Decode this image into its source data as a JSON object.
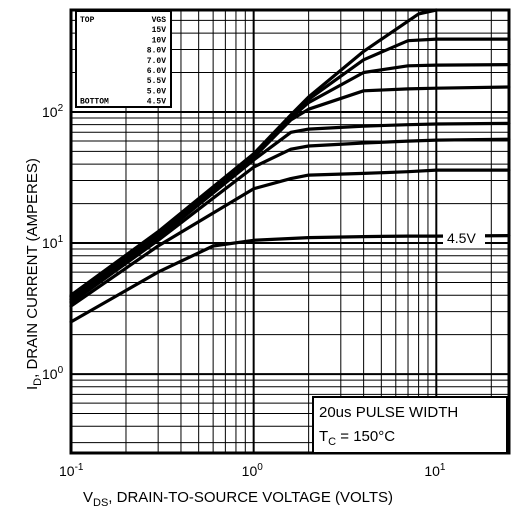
{
  "chart_data": {
    "type": "line",
    "x_scale": "log",
    "y_scale": "log",
    "xlim": [
      0.1,
      25
    ],
    "ylim": [
      0.25,
      600
    ],
    "grid": true,
    "xlabel": "VDS, DRAIN-TO-SOURCE VOLTAGE (VOLTS)",
    "ylabel": "ID, DRAIN CURRENT (AMPERES)",
    "x_ticks": [
      "10-1",
      "100",
      "101"
    ],
    "y_ticks": [
      "100",
      "101",
      "102"
    ],
    "legend": {
      "position": "top-left",
      "row_labels": [
        "TOP",
        "",
        "",
        "",
        "",
        "",
        "",
        "",
        "BOTTOM"
      ],
      "entries": [
        "VGS",
        "15V",
        "10V",
        "8.0V",
        "7.0V",
        "6.0V",
        "5.5V",
        "5.0V",
        "4.5V"
      ]
    },
    "annotation": {
      "label": "4.5V",
      "series": "4.5V"
    },
    "info_box": {
      "line1": "20us PULSE WIDTH",
      "line2": "TC = 150°C"
    },
    "series": [
      {
        "name": "15V",
        "x": [
          0.1,
          0.3,
          1.0,
          1.6,
          2.0,
          4.0,
          8.0,
          10.0
        ],
        "y": [
          4.0,
          12.2,
          48,
          95,
          130,
          290,
          560,
          600
        ]
      },
      {
        "name": "10V",
        "x": [
          0.1,
          0.3,
          1.0,
          1.6,
          2.0,
          4.0,
          7.0,
          10.0,
          25.0
        ],
        "y": [
          3.9,
          12.0,
          47,
          92,
          125,
          250,
          350,
          360,
          360
        ]
      },
      {
        "name": "8.0V",
        "x": [
          0.1,
          0.3,
          1.0,
          1.6,
          2.0,
          4.0,
          7.0,
          10.0,
          25.0
        ],
        "y": [
          3.8,
          11.7,
          46,
          90,
          118,
          200,
          225,
          228,
          230
        ]
      },
      {
        "name": "7.0V",
        "x": [
          0.1,
          0.3,
          1.0,
          1.6,
          2.0,
          4.0,
          7.0,
          10.0,
          25.0
        ],
        "y": [
          3.7,
          11.3,
          45,
          87,
          105,
          145,
          150,
          152,
          155
        ]
      },
      {
        "name": "6.0V",
        "x": [
          0.1,
          0.3,
          1.0,
          1.6,
          2.0,
          4.0,
          7.0,
          10.0,
          25.0
        ],
        "y": [
          3.6,
          11.0,
          43,
          70,
          74,
          78,
          80,
          81,
          82
        ]
      },
      {
        "name": "5.5V",
        "x": [
          0.1,
          0.3,
          1.0,
          1.6,
          2.0,
          4.0,
          7.0,
          10.0,
          25.0
        ],
        "y": [
          3.5,
          10.5,
          38,
          52,
          55,
          58,
          60,
          61,
          62
        ]
      },
      {
        "name": "5.0V",
        "x": [
          0.1,
          0.3,
          1.0,
          1.6,
          2.0,
          4.0,
          7.0,
          10.0,
          25.0
        ],
        "y": [
          3.3,
          9.5,
          26,
          31,
          33,
          34,
          35,
          36,
          36
        ]
      },
      {
        "name": "4.5V",
        "x": [
          0.1,
          0.3,
          0.6,
          1.0,
          2.0,
          4.0,
          7.0,
          10.0,
          25.0
        ],
        "y": [
          2.5,
          6.0,
          9.5,
          10.5,
          11.0,
          11.2,
          11.3,
          11.3,
          11.4
        ]
      }
    ]
  }
}
